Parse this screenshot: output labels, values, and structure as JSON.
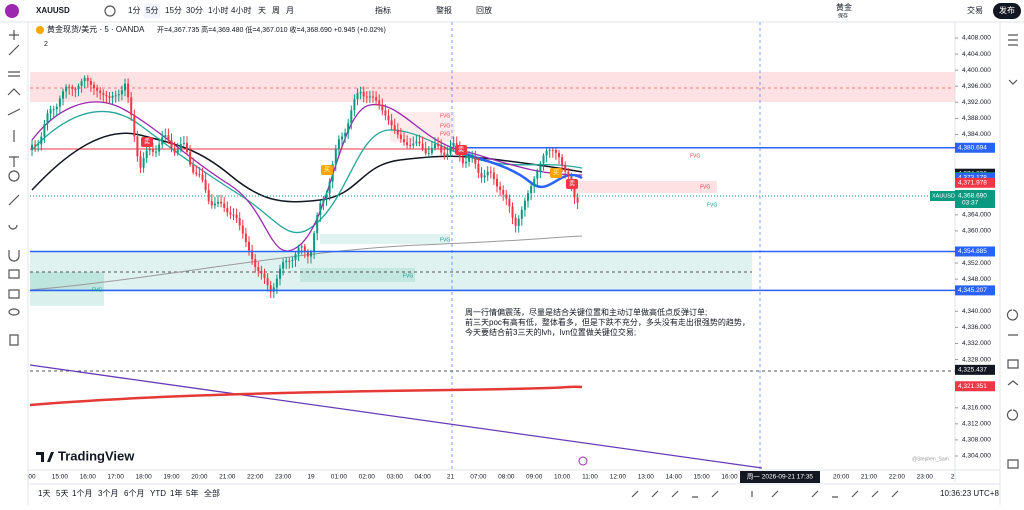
{
  "toolbar": {
    "symbol": "XAUUSD",
    "intervals": [
      "1分",
      "5分",
      "15分",
      "30分",
      "1小时",
      "4小时",
      "天",
      "周",
      "月"
    ],
    "indicators": "指标",
    "alert": "警报",
    "replay": "回放",
    "account": "黄金",
    "save": "保存",
    "trade": "交易",
    "publish": "发布"
  },
  "legend": {
    "title": "黄金现货/美元 · 5 · OANDA",
    "ohlc": "开=4,367.735 高=4,369.480 低=4,367.010 收=4,368.690 +0.945 (+0.02%)",
    "count": "2"
  },
  "price_axis": {
    "ticks": [
      {
        "value": 4408,
        "label": "4,408.000"
      },
      {
        "value": 4404,
        "label": "4,404.000"
      },
      {
        "value": 4400,
        "label": "4,400.000"
      },
      {
        "value": 4396,
        "label": "4,396.000"
      },
      {
        "value": 4392,
        "label": "4,392.000"
      },
      {
        "value": 4388,
        "label": "4,388.000"
      },
      {
        "value": 4384,
        "label": "4,384.000"
      },
      {
        "value": 4364,
        "label": "4,364.000"
      },
      {
        "value": 4360,
        "label": "4,360.000"
      },
      {
        "value": 4352,
        "label": "4,352.000"
      },
      {
        "value": 4348,
        "label": "4,348.000"
      },
      {
        "value": 4340,
        "label": "4,340.000"
      },
      {
        "value": 4336,
        "label": "4,336.000"
      },
      {
        "value": 4332,
        "label": "4,332.000"
      },
      {
        "value": 4328,
        "label": "4,328.000"
      },
      {
        "value": 4316,
        "label": "4,316.000"
      },
      {
        "value": 4312,
        "label": "4,312.000"
      },
      {
        "value": 4308,
        "label": "4,308.000"
      },
      {
        "value": 4304,
        "label": "4,304.000"
      }
    ]
  },
  "price_tags": [
    {
      "value": 4380.694,
      "label": "4,380.694",
      "color": "#2962ff"
    },
    {
      "value": 4374.236,
      "label": "4,374.236",
      "color": "#131722"
    },
    {
      "value": 4373.362,
      "label": "4,373.362",
      "color": "#089981"
    },
    {
      "value": 4373.178,
      "label": "4,373.178",
      "color": "#2962ff"
    },
    {
      "value": 4371.978,
      "label": "4,371.978",
      "color": "#f23645"
    },
    {
      "value": 4354.885,
      "label": "4,354.885",
      "color": "#2962ff"
    },
    {
      "value": 4345.207,
      "label": "4,345.207",
      "color": "#2962ff"
    },
    {
      "value": 4325.437,
      "label": "4,325.437",
      "color": "#131722"
    },
    {
      "value": 4321.351,
      "label": "4,321.351",
      "color": "#f23645"
    }
  ],
  "current": {
    "symbol": "XAUUSD",
    "price": {
      "value": 4368.69,
      "label": "4,368.690"
    },
    "countdown": "03:37"
  },
  "time_axis": [
    "00",
    "15:00",
    "16:00",
    "17:00",
    "18:00",
    "19:00",
    "20:00",
    "21:00",
    "22:00",
    "23:00",
    "19",
    "01:00",
    "02:00",
    "03:00",
    "04:00",
    "21",
    "07:00",
    "08:00",
    "09:00",
    "10:00",
    "11:00",
    "12:00",
    "13:00",
    "14:00",
    "15:00",
    "16:00",
    "20:00",
    "21:00",
    "22:00",
    "23:00",
    "2"
  ],
  "crosshair_time": "周一 2026-09-21 17:35",
  "annotation": [
    "周一行情偏震荡，尽量是结合关键位置和主动订单做高低点反弹订单;",
    "前三天poc有高有低，整体看多，但是下跌不充分，多头没有走出很强势的趋势，",
    "今天要结合前3三天的lvh，lvn位置做关键位交易;"
  ],
  "fvg_labels": [
    "FVG",
    "FVG",
    "FVG",
    "FVG",
    "FVG",
    "FVG",
    "FVG",
    "FVG",
    "FVG"
  ],
  "signals": [
    "卖",
    "买",
    "卖",
    "买",
    "卖"
  ],
  "watermark": "TradingView",
  "author": "@Stephen_Sam",
  "ranges": [
    "1天",
    "5天",
    "1个月",
    "3个月",
    "6个月",
    "YTD",
    "1年",
    "5年",
    "全部"
  ],
  "clock": "10:36:23 UTC+8"
}
